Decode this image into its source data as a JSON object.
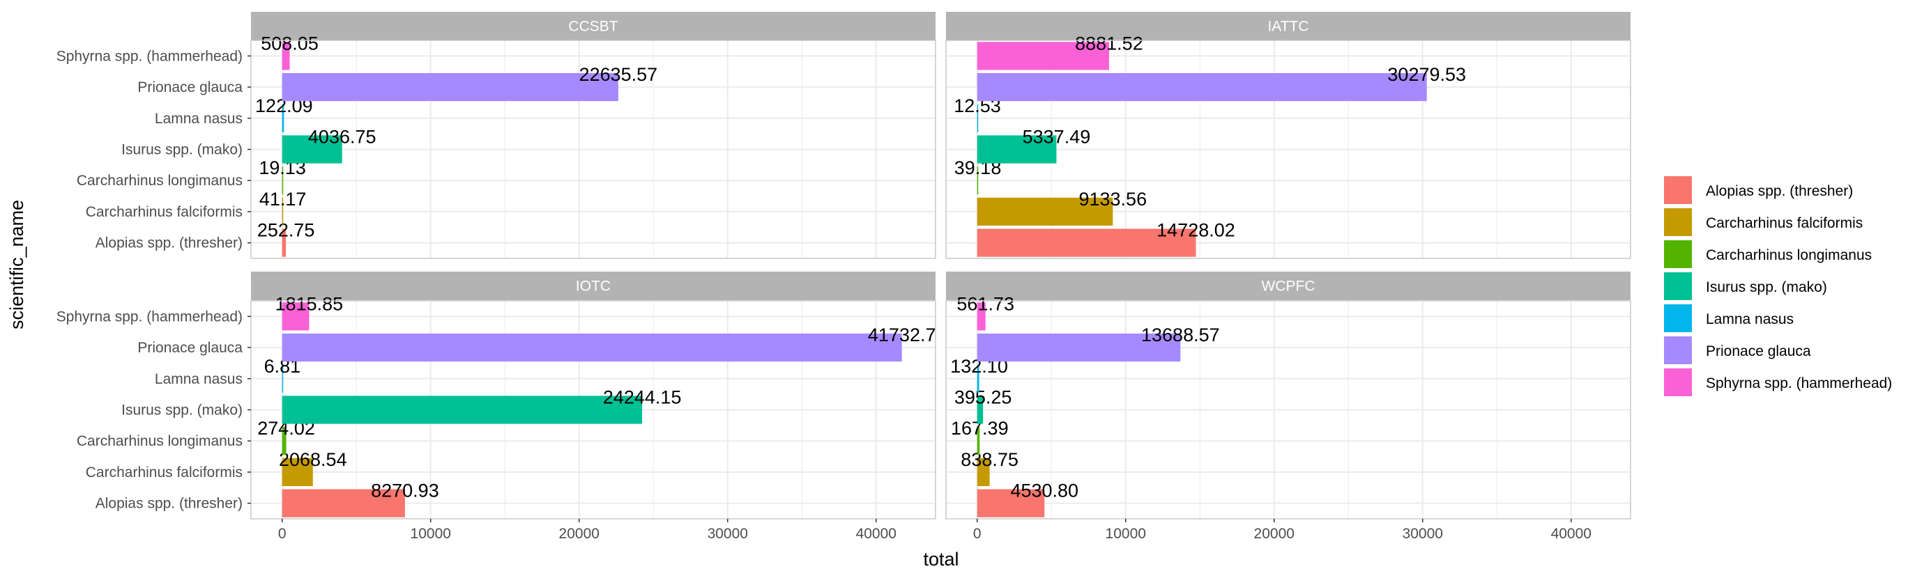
{
  "chart_data": {
    "type": "bar",
    "orientation": "horizontal",
    "xlabel": "total",
    "ylabel": "scientific_name",
    "xlim": [
      -2100,
      44000
    ],
    "xticks": [
      0,
      10000,
      20000,
      30000,
      40000
    ],
    "xtick_labels": [
      "0",
      "10000",
      "20000",
      "30000",
      "40000"
    ],
    "categories": [
      "Alopias spp. (thresher)",
      "Carcharhinus falciformis",
      "Carcharhinus longimanus",
      "Isurus spp. (mako)",
      "Lamna nasus",
      "Prionace glauca",
      "Sphyrna spp. (hammerhead)"
    ],
    "colors": [
      "#F8766D",
      "#C49A00",
      "#53B400",
      "#00C094",
      "#00B6EB",
      "#A58AFF",
      "#FB61D7"
    ],
    "grid": true,
    "legend_position": "right",
    "panels": [
      {
        "title": "CCSBT",
        "values": [
          252.75,
          41.17,
          19.13,
          4036.75,
          122.09,
          22635.57,
          508.05
        ],
        "labels": [
          "252.75",
          "41.17",
          "19.13",
          "4036.75",
          "122.09",
          "22635.57",
          "508.05"
        ]
      },
      {
        "title": "IATTC",
        "values": [
          14728.02,
          9133.56,
          39.18,
          5337.49,
          12.53,
          30279.53,
          8881.52
        ],
        "labels": [
          "14728.02",
          "9133.56",
          "39.18",
          "5337.49",
          "12.53",
          "30279.53",
          "8881.52"
        ]
      },
      {
        "title": "IOTC",
        "values": [
          8270.93,
          2068.54,
          274.02,
          24244.15,
          6.81,
          41732.7,
          1815.85
        ],
        "labels": [
          "8270.93",
          "2068.54",
          "274.02",
          "24244.15",
          "6.81",
          "41732.7",
          "1815.85"
        ]
      },
      {
        "title": "WCPFC",
        "values": [
          4530.8,
          838.75,
          167.39,
          395.25,
          132.1,
          13688.57,
          561.73
        ],
        "labels": [
          "4530.80",
          "838.75",
          "167.39",
          "395.25",
          "132.10",
          "13688.57",
          "561.73"
        ]
      }
    ]
  },
  "legend": {
    "items": [
      "Alopias spp. (thresher)",
      "Carcharhinus falciformis",
      "Carcharhinus longimanus",
      "Isurus spp. (mako)",
      "Lamna nasus",
      "Prionace glauca",
      "Sphyrna spp. (hammerhead)"
    ]
  }
}
